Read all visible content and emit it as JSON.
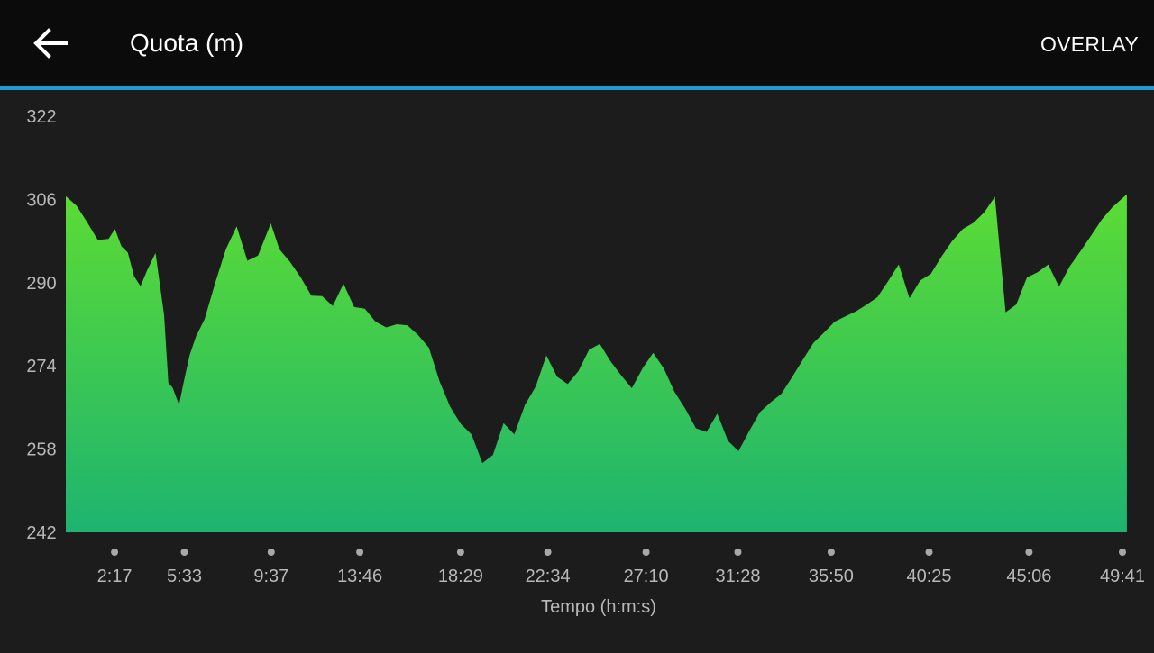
{
  "header": {
    "title": "Quota (m)",
    "overlay_label": "OVERLAY",
    "back_icon": "arrow-left-icon"
  },
  "colors": {
    "header_bg": "#0b0b0b",
    "accent": "#1b9ad6",
    "background": "#1c1c1c",
    "fill_top": "#5cdc34",
    "fill_bottom": "#1db470",
    "tick_text": "#b8b8b8",
    "tick_dot": "#a8a8a8"
  },
  "chart_data": {
    "type": "area",
    "title": "Quota (m)",
    "xlabel": "Tempo (h:m:s)",
    "ylabel": "Quota (m)",
    "ylim": [
      242,
      322
    ],
    "y_ticks": [
      "322",
      "306",
      "290",
      "274",
      "258",
      "242"
    ],
    "x_ticks": [
      "2:17",
      "5:33",
      "9:37",
      "13:46",
      "18:29",
      "22:34",
      "27:10",
      "31:28",
      "35:50",
      "40:25",
      "45:06",
      "49:41"
    ],
    "x_tick_minutes": [
      2.283,
      5.55,
      9.617,
      13.767,
      18.483,
      22.567,
      27.167,
      31.467,
      35.833,
      40.417,
      45.1,
      49.683
    ],
    "xlim_minutes": [
      0,
      49.683
    ],
    "grid": false,
    "legend": "none",
    "x_minutes": [
      0.0,
      0.5,
      1.0,
      1.5,
      2.0,
      2.3,
      2.6,
      2.9,
      3.2,
      3.5,
      3.8,
      4.2,
      4.6,
      4.8,
      5.0,
      5.3,
      5.5,
      5.8,
      6.1,
      6.5,
      7.0,
      7.5,
      8.0,
      8.5,
      9.0,
      9.6,
      10.0,
      10.5,
      11.0,
      11.5,
      12.0,
      12.5,
      13.0,
      13.5,
      14.0,
      14.5,
      15.0,
      15.5,
      16.0,
      16.5,
      17.0,
      17.5,
      18.0,
      18.5,
      19.0,
      19.5,
      20.0,
      20.5,
      21.0,
      21.5,
      22.0,
      22.5,
      23.0,
      23.5,
      24.0,
      24.5,
      25.0,
      25.5,
      26.0,
      26.5,
      27.0,
      27.5,
      28.0,
      28.5,
      29.0,
      29.5,
      30.0,
      30.5,
      31.0,
      31.5,
      32.0,
      32.5,
      33.0,
      33.5,
      34.0,
      34.5,
      35.0,
      35.5,
      36.0,
      36.5,
      37.0,
      37.5,
      38.0,
      38.5,
      39.0,
      39.5,
      40.0,
      40.5,
      41.0,
      41.5,
      42.0,
      42.5,
      43.0,
      43.5,
      44.0,
      44.5,
      45.0,
      45.5,
      46.0,
      46.5,
      47.0,
      47.5,
      48.0,
      48.5,
      49.0,
      49.68
    ],
    "y_values": [
      306.6,
      304.8,
      301.6,
      298.2,
      298.4,
      300.3,
      297.0,
      295.8,
      291.2,
      289.3,
      292.3,
      295.7,
      283.8,
      270.8,
      269.8,
      266.5,
      270.5,
      276.1,
      279.7,
      283.0,
      290.0,
      296.5,
      300.8,
      294.2,
      295.2,
      301.4,
      296.4,
      294.0,
      291.0,
      287.5,
      287.4,
      285.5,
      289.8,
      285.3,
      285.0,
      282.5,
      281.4,
      282.0,
      281.8,
      279.9,
      277.5,
      271.0,
      266.1,
      262.8,
      260.8,
      255.3,
      256.9,
      263.0,
      260.8,
      266.5,
      270.0,
      276.0,
      271.9,
      270.5,
      273.0,
      277.1,
      278.2,
      274.9,
      272.2,
      269.7,
      273.5,
      276.5,
      273.5,
      269.0,
      265.8,
      262.0,
      261.3,
      264.8,
      259.6,
      257.6,
      261.5,
      265.1,
      267.0,
      268.6,
      271.8,
      275.1,
      278.4,
      280.4,
      282.5,
      283.5,
      284.5,
      285.8,
      287.2,
      290.3,
      293.5,
      287.0,
      290.4,
      291.7,
      295.0,
      298.0,
      300.3,
      301.5,
      303.5,
      306.5,
      284.3,
      285.8,
      291.0,
      292.0,
      293.5,
      289.2,
      293.1,
      296.0,
      299.0,
      302.1,
      304.5,
      307.0
    ]
  },
  "labels": {
    "y_ticks": [
      "322",
      "306",
      "290",
      "274",
      "258",
      "242"
    ],
    "x_ticks": [
      "2:17",
      "5:33",
      "9:37",
      "13:46",
      "18:29",
      "22:34",
      "27:10",
      "31:28",
      "35:50",
      "40:25",
      "45:06",
      "49:41"
    ],
    "x_axis_title": "Tempo (h:m:s)"
  }
}
